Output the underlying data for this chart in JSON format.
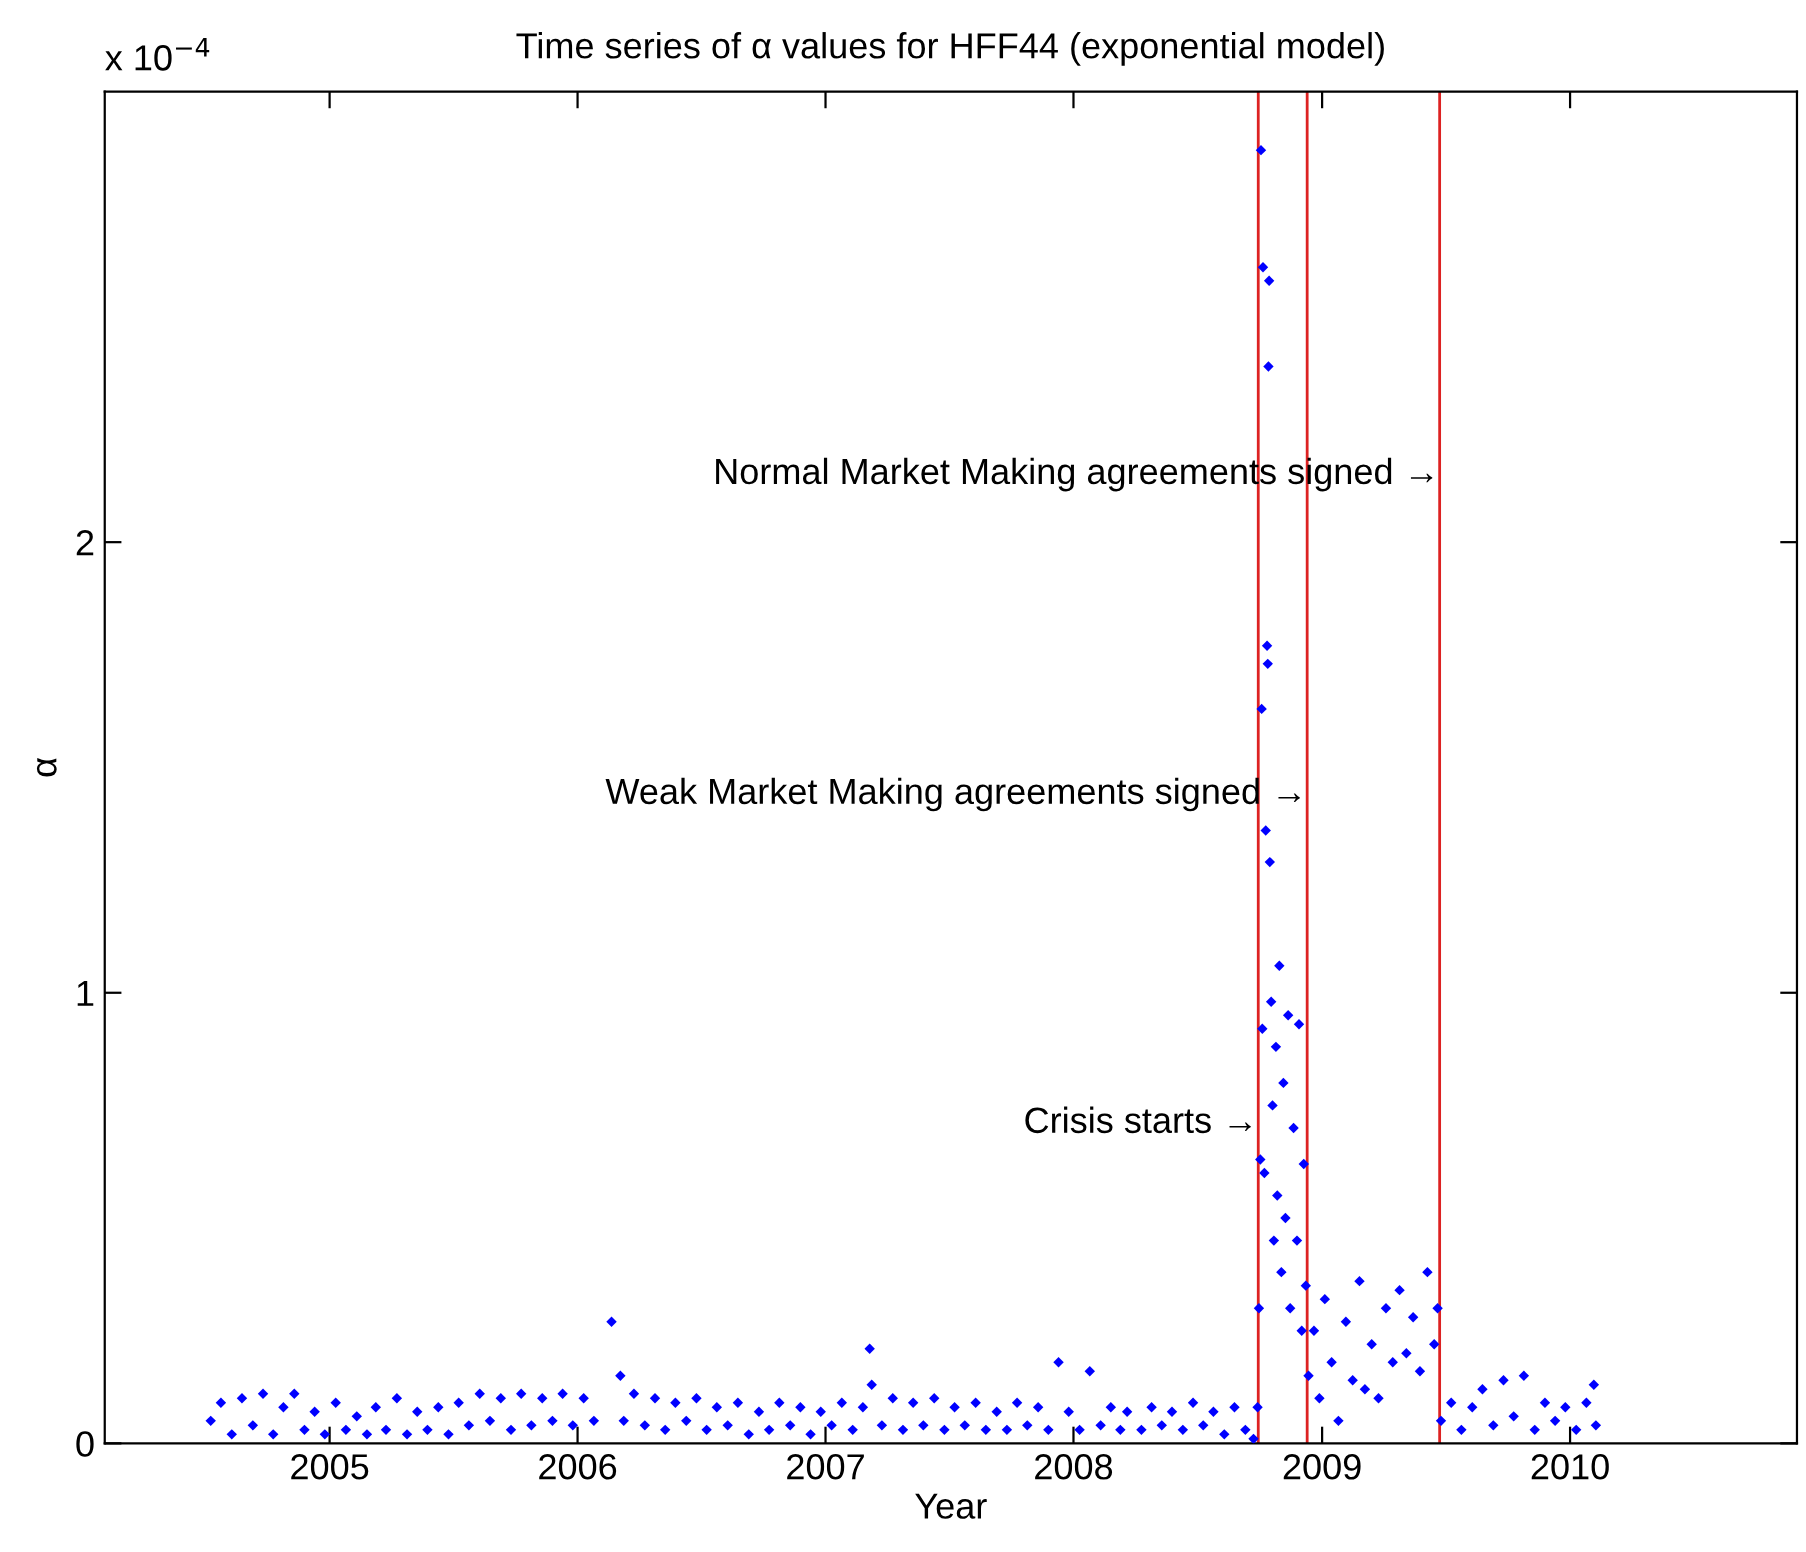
{
  "chart_data": {
    "type": "scatter",
    "title": "Time series of α values for HFF44 (exponential model)",
    "xlabel": "Year",
    "ylabel": "α",
    "xlim": [
      "2004-02-05",
      "2010-12-01"
    ],
    "xticks": [
      "2005",
      "2006",
      "2007",
      "2008",
      "2009",
      "2010"
    ],
    "ylim": [
      0,
      3
    ],
    "yticks": [
      0,
      1,
      2
    ],
    "marker": "diamond",
    "grid": false,
    "legend": false,
    "ref_lines": [
      {
        "axis": "x",
        "value": "2008-09-29",
        "color": "#dd2222"
      },
      {
        "axis": "x",
        "value": "2008-12-10",
        "color": "#dd2222"
      },
      {
        "axis": "x",
        "value": "2009-06-23",
        "color": "#dd2222"
      }
    ],
    "annotations": [
      "x 10$^{−4}$",
      {
        "text": "Crisis starts →",
        "x": "2008-09-29",
        "y": 0.71
      },
      {
        "text": "Weak Market Making agreements signed →",
        "x": "2008-12-10",
        "y": 1.44
      },
      {
        "text": "Normal Market Making agreements signed →",
        "x": "2009-06-23",
        "y": 2.15
      }
    ],
    "series": [
      {
        "color": "#0000ff",
        "x": [
          "2004-07-10",
          "2004-07-25",
          "2004-08-10",
          "2004-08-25",
          "2004-09-10",
          "2004-09-25",
          "2004-10-10",
          "2004-10-25",
          "2004-11-10",
          "2004-11-25",
          "2004-12-10",
          "2004-12-25",
          "2005-01-10",
          "2005-01-25",
          "2005-02-10",
          "2005-02-25",
          "2005-03-10",
          "2005-03-25",
          "2005-04-10",
          "2005-04-25",
          "2005-05-10",
          "2005-05-25",
          "2005-06-10",
          "2005-06-25",
          "2005-07-10",
          "2005-07-25",
          "2005-08-10",
          "2005-08-25",
          "2005-09-10",
          "2005-09-25",
          "2005-10-10",
          "2005-10-25",
          "2005-11-10",
          "2005-11-25",
          "2005-12-10",
          "2005-12-25",
          "2006-01-10",
          "2006-01-25",
          "2006-02-20",
          "2006-03-05",
          "2006-03-10",
          "2006-03-25",
          "2006-04-10",
          "2006-04-25",
          "2006-05-10",
          "2006-05-25",
          "2006-06-10",
          "2006-06-25",
          "2006-07-10",
          "2006-07-25",
          "2006-08-10",
          "2006-08-25",
          "2006-09-10",
          "2006-09-25",
          "2006-10-10",
          "2006-10-25",
          "2006-11-10",
          "2006-11-25",
          "2006-12-10",
          "2006-12-25",
          "2007-01-10",
          "2007-01-25",
          "2007-02-10",
          "2007-02-25",
          "2007-03-07",
          "2007-03-10",
          "2007-03-25",
          "2007-04-10",
          "2007-04-25",
          "2007-05-10",
          "2007-05-25",
          "2007-06-10",
          "2007-06-25",
          "2007-07-10",
          "2007-07-25",
          "2007-08-10",
          "2007-08-25",
          "2007-09-10",
          "2007-09-25",
          "2007-10-10",
          "2007-10-25",
          "2007-11-10",
          "2007-11-25",
          "2007-12-10",
          "2007-12-25",
          "2008-01-10",
          "2008-01-25",
          "2008-02-10",
          "2008-02-25",
          "2008-03-10",
          "2008-03-20",
          "2008-04-10",
          "2008-04-25",
          "2008-05-10",
          "2008-05-25",
          "2008-06-10",
          "2008-06-25",
          "2008-07-10",
          "2008-07-25",
          "2008-08-10",
          "2008-08-25",
          "2008-09-10",
          "2008-09-22",
          "2008-09-28",
          "2008-09-30",
          "2008-10-02",
          "2008-10-03",
          "2008-10-04",
          "2008-10-05",
          "2008-10-06",
          "2008-10-08",
          "2008-10-10",
          "2008-10-12",
          "2008-10-13",
          "2008-10-14",
          "2008-10-15",
          "2008-10-16",
          "2008-10-18",
          "2008-10-20",
          "2008-10-22",
          "2008-10-25",
          "2008-10-27",
          "2008-10-30",
          "2008-11-02",
          "2008-11-05",
          "2008-11-08",
          "2008-11-12",
          "2008-11-15",
          "2008-11-20",
          "2008-11-25",
          "2008-11-28",
          "2008-12-02",
          "2008-12-05",
          "2008-12-08",
          "2008-12-12",
          "2008-12-20",
          "2008-12-28",
          "2009-01-05",
          "2009-01-15",
          "2009-01-25",
          "2009-02-05",
          "2009-02-15",
          "2009-02-25",
          "2009-03-05",
          "2009-03-15",
          "2009-03-25",
          "2009-04-05",
          "2009-04-15",
          "2009-04-25",
          "2009-05-05",
          "2009-05-15",
          "2009-05-25",
          "2009-06-05",
          "2009-06-15",
          "2009-06-20",
          "2009-06-25",
          "2009-07-10",
          "2009-07-25",
          "2009-08-10",
          "2009-08-25",
          "2009-09-10",
          "2009-09-25",
          "2009-10-10",
          "2009-10-25",
          "2009-11-10",
          "2009-11-25",
          "2009-12-10",
          "2009-12-25",
          "2010-01-10",
          "2010-01-25",
          "2010-02-05",
          "2010-02-08"
        ],
        "values": [
          0.05,
          0.09,
          0.02,
          0.1,
          0.04,
          0.11,
          0.02,
          0.08,
          0.11,
          0.03,
          0.07,
          0.02,
          0.09,
          0.03,
          0.06,
          0.02,
          0.08,
          0.03,
          0.1,
          0.02,
          0.07,
          0.03,
          0.08,
          0.02,
          0.09,
          0.04,
          0.11,
          0.05,
          0.1,
          0.03,
          0.11,
          0.04,
          0.1,
          0.05,
          0.11,
          0.04,
          0.1,
          0.05,
          0.27,
          0.15,
          0.05,
          0.11,
          0.04,
          0.1,
          0.03,
          0.09,
          0.05,
          0.1,
          0.03,
          0.08,
          0.04,
          0.09,
          0.02,
          0.07,
          0.03,
          0.09,
          0.04,
          0.08,
          0.02,
          0.07,
          0.04,
          0.09,
          0.03,
          0.08,
          0.21,
          0.13,
          0.04,
          0.1,
          0.03,
          0.09,
          0.04,
          0.1,
          0.03,
          0.08,
          0.04,
          0.09,
          0.03,
          0.07,
          0.03,
          0.09,
          0.04,
          0.08,
          0.03,
          0.18,
          0.07,
          0.03,
          0.16,
          0.04,
          0.08,
          0.03,
          0.07,
          0.03,
          0.08,
          0.04,
          0.07,
          0.03,
          0.09,
          0.04,
          0.07,
          0.02,
          0.08,
          0.03,
          0.01,
          0.08,
          0.3,
          0.63,
          2.87,
          1.63,
          0.92,
          2.61,
          0.6,
          1.36,
          1.77,
          1.73,
          2.39,
          2.58,
          1.29,
          0.98,
          0.75,
          0.45,
          0.88,
          0.55,
          1.06,
          0.38,
          0.8,
          0.5,
          0.95,
          0.3,
          0.7,
          0.45,
          0.93,
          0.25,
          0.62,
          0.35,
          0.15,
          0.25,
          0.1,
          0.32,
          0.18,
          0.05,
          0.27,
          0.14,
          0.36,
          0.12,
          0.22,
          0.1,
          0.3,
          0.18,
          0.34,
          0.2,
          0.28,
          0.16,
          0.38,
          0.22,
          0.3,
          0.05,
          0.09,
          0.03,
          0.08,
          0.12,
          0.04,
          0.14,
          0.06,
          0.15,
          0.03,
          0.09,
          0.05,
          0.08,
          0.03,
          0.09,
          0.13,
          0.04
        ]
      }
    ]
  }
}
